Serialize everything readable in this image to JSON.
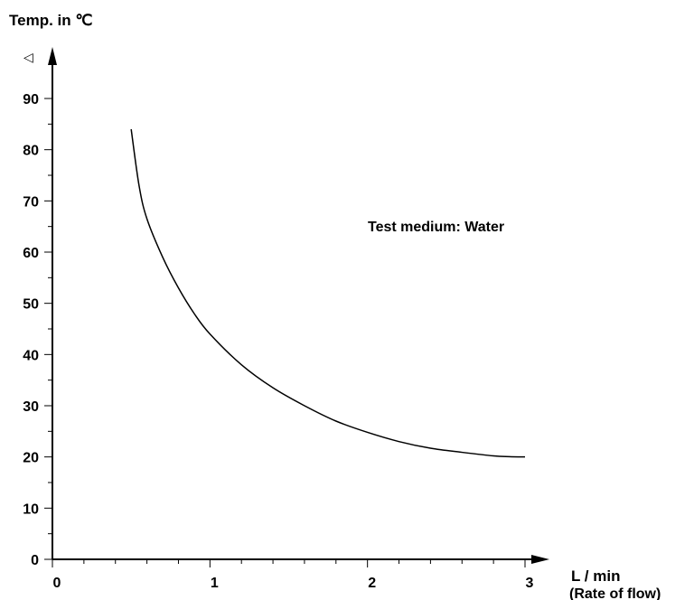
{
  "chart_data": {
    "type": "line",
    "ylabel": "Temp. in ℃",
    "ylabel_marker": "◁",
    "xlabel": "L / min",
    "xlabel_sub": "(Rate of flow)",
    "annotation": "Test medium: Water",
    "xlim": [
      0,
      3
    ],
    "ylim": [
      0,
      90
    ],
    "x_ticks": [
      0,
      1,
      2,
      3
    ],
    "y_ticks": [
      0,
      10,
      20,
      30,
      40,
      50,
      60,
      70,
      80,
      90
    ],
    "grid": false,
    "series": [
      {
        "x": [
          0.5,
          0.55,
          0.6,
          0.7,
          0.8,
          0.9,
          1.0,
          1.2,
          1.4,
          1.6,
          1.8,
          2.0,
          2.2,
          2.4,
          2.6,
          2.8,
          2.9,
          3.0
        ],
        "y": [
          84,
          73,
          66.5,
          59,
          53,
          48,
          44,
          38,
          33.5,
          30,
          27,
          24.8,
          23,
          21.7,
          20.9,
          20.2,
          20.05,
          20
        ]
      }
    ]
  }
}
